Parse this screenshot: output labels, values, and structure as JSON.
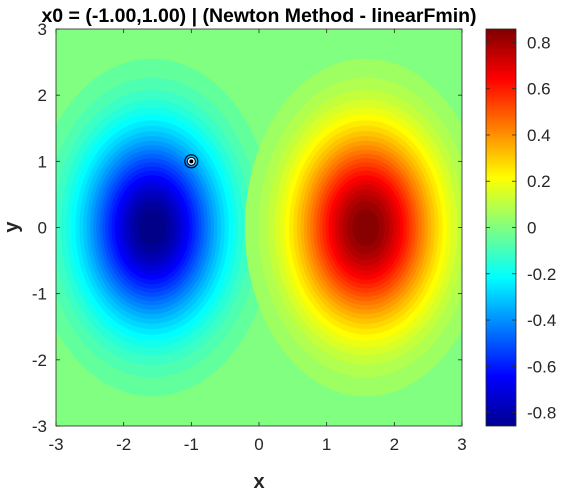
{
  "chart_data": {
    "type": "heatmap",
    "title": "x0 = (-1.00,1.00) | (Newton Method - linearFmin)",
    "xlabel": "x",
    "ylabel": "y",
    "xlim": [
      -3,
      3
    ],
    "ylim": [
      -3,
      3
    ],
    "x_ticks": [
      "-3",
      "-2",
      "-1",
      "0",
      "1",
      "2",
      "3"
    ],
    "y_ticks": [
      "-3",
      "-2",
      "-1",
      "0",
      "1",
      "2",
      "3"
    ],
    "colormap": "jet",
    "clim": [
      -0.858,
      0.858
    ],
    "colorbar_ticks": [
      "0.8",
      "0.6",
      "0.4",
      "0.2",
      "0",
      "-0.2",
      "-0.4",
      "-0.6",
      "-0.8"
    ],
    "colorbar_tick_values": [
      0.8,
      0.6,
      0.4,
      0.2,
      0,
      -0.2,
      -0.4,
      -0.6,
      -0.8
    ],
    "surface": {
      "extrema": [
        {
          "x": -1.58,
          "y": 0.0,
          "value": -0.858
        },
        {
          "x": 1.58,
          "y": 0.0,
          "value": 0.858
        }
      ]
    },
    "point": {
      "x": -1.0,
      "y": 1.0
    }
  }
}
